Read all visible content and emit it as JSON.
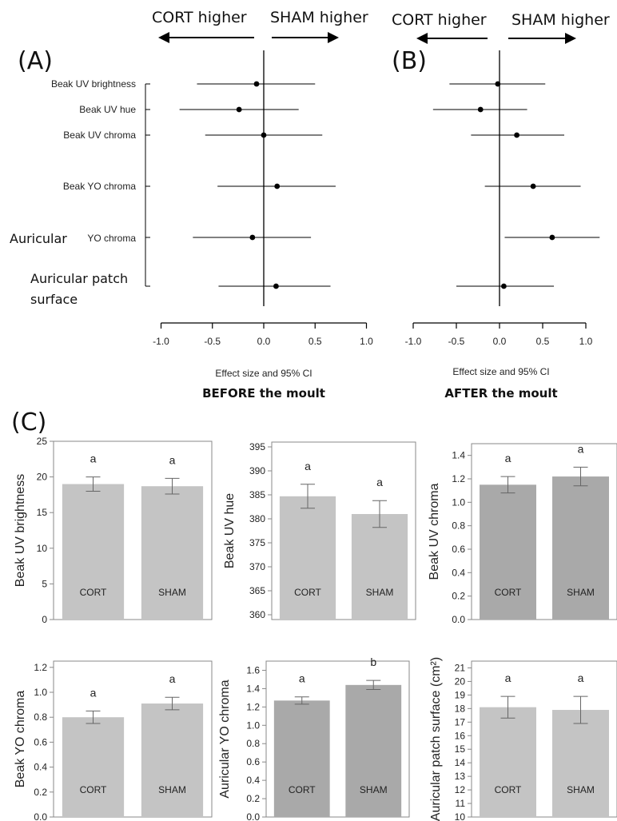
{
  "panels": {
    "forest_A": {
      "letter": "(A)",
      "left_direction": "CORT higher",
      "right_direction": "SHAM higher",
      "x_axis_label": "Effect size and 95% CI",
      "caption": "BEFORE the moult"
    },
    "forest_B": {
      "letter": "(B)",
      "left_direction": "CORT higher",
      "right_direction": "SHAM higher",
      "x_axis_label": "Effect size and 95% CI",
      "caption": "AFTER the moult"
    },
    "bars_C": {
      "letter": "(C)"
    }
  },
  "chart_data": [
    {
      "type": "scatter",
      "panel": "A",
      "categories": [
        "Beak UV brightness",
        "Beak UV hue",
        "Beak UV chroma",
        "Beak YO chroma",
        "Auricular YO chroma",
        "Auricular patch surface"
      ],
      "category_label_lines": [
        [
          "Beak UV brightness"
        ],
        [
          "Beak UV hue"
        ],
        [
          "Beak UV chroma"
        ],
        [
          "Beak YO chroma"
        ],
        [
          "Auricular",
          "YO chroma"
        ],
        [
          "Auricular patch",
          "surface"
        ]
      ],
      "estimates": [
        -0.07,
        -0.24,
        0.0,
        0.13,
        -0.11,
        0.12
      ],
      "ci_low": [
        -0.65,
        -0.82,
        -0.57,
        -0.45,
        -0.69,
        -0.44
      ],
      "ci_high": [
        0.5,
        0.34,
        0.57,
        0.7,
        0.46,
        0.65
      ],
      "xlabel": "Effect size and 95% CI",
      "xlim": [
        -1.0,
        1.0
      ],
      "xticks": [
        "-1.0",
        "-0.5",
        "0.0",
        "0.5",
        "1.0"
      ],
      "reference_line": 0
    },
    {
      "type": "scatter",
      "panel": "B",
      "categories": [
        "Beak UV brightness",
        "Beak UV hue",
        "Beak UV chroma",
        "Beak YO chroma",
        "Auricular YO chroma",
        "Auricular patch surface"
      ],
      "estimates": [
        -0.02,
        -0.22,
        0.2,
        0.39,
        0.61,
        0.05
      ],
      "ci_low": [
        -0.58,
        -0.77,
        -0.33,
        -0.17,
        0.06,
        -0.5
      ],
      "ci_high": [
        0.53,
        0.32,
        0.75,
        0.94,
        1.16,
        0.63
      ],
      "xlabel": "Effect size and 95% CI",
      "xlim": [
        -1.0,
        1.0
      ],
      "xticks": [
        "-1.0",
        "-0.5",
        "0.0",
        "0.5",
        "1.0"
      ],
      "reference_line": 0
    },
    {
      "type": "bar",
      "panel": "C1",
      "categories": [
        "CORT",
        "SHAM"
      ],
      "values": [
        19.0,
        18.7
      ],
      "errors": [
        1.0,
        1.1
      ],
      "letters": [
        "a",
        "a"
      ],
      "ylabel": "Beak UV brightness",
      "ylim": [
        0,
        25
      ],
      "yticks": [
        "0",
        "5",
        "10",
        "15",
        "20",
        "25"
      ],
      "bar_color": "#c4c4c4"
    },
    {
      "type": "bar",
      "panel": "C2",
      "categories": [
        "CORT",
        "SHAM"
      ],
      "values": [
        384.7,
        381.0
      ],
      "errors": [
        2.5,
        2.8
      ],
      "letters": [
        "a",
        "a"
      ],
      "ylabel": "Beak UV hue",
      "ylim": [
        359,
        396
      ],
      "yticks": [
        "360",
        "365",
        "370",
        "375",
        "380",
        "385",
        "390",
        "395"
      ],
      "bar_color": "#c4c4c4"
    },
    {
      "type": "bar",
      "panel": "C3",
      "categories": [
        "CORT",
        "SHAM"
      ],
      "values": [
        1.15,
        1.22
      ],
      "errors": [
        0.07,
        0.08
      ],
      "letters": [
        "a",
        "a"
      ],
      "ylabel": "Beak UV chroma",
      "ylim": [
        0,
        1.5
      ],
      "yticks": [
        "0.0",
        "0.2",
        "0.4",
        "0.6",
        "0.8",
        "1.0",
        "1.2",
        "1.4"
      ],
      "bar_color": "#a9a9a9"
    },
    {
      "type": "bar",
      "panel": "C4",
      "categories": [
        "CORT",
        "SHAM"
      ],
      "values": [
        0.8,
        0.91
      ],
      "errors": [
        0.05,
        0.05
      ],
      "letters": [
        "a",
        "a"
      ],
      "ylabel": "Beak YO chroma",
      "ylim": [
        0,
        1.25
      ],
      "yticks": [
        "0.0",
        "0.2",
        "0.4",
        "0.6",
        "0.8",
        "1.0",
        "1.2"
      ],
      "bar_color": "#c4c4c4"
    },
    {
      "type": "bar",
      "panel": "C5",
      "categories": [
        "CORT",
        "SHAM"
      ],
      "values": [
        1.27,
        1.44
      ],
      "errors": [
        0.04,
        0.05
      ],
      "letters": [
        "a",
        "b"
      ],
      "ylabel": "Auricular YO chroma",
      "ylim": [
        0,
        1.7
      ],
      "yticks": [
        "0.0",
        "0.2",
        "0.4",
        "0.6",
        "0.8",
        "1.0",
        "1.2",
        "1.4",
        "1.6"
      ],
      "bar_color": "#a9a9a9"
    },
    {
      "type": "bar",
      "panel": "C6",
      "categories": [
        "CORT",
        "SHAM"
      ],
      "values": [
        18.1,
        17.9
      ],
      "errors": [
        0.8,
        1.0
      ],
      "letters": [
        "a",
        "a"
      ],
      "ylabel": "Auricular patch surface (cm²)",
      "ylim": [
        10,
        21.5
      ],
      "yticks": [
        "10",
        "11",
        "12",
        "13",
        "14",
        "15",
        "16",
        "17",
        "18",
        "19",
        "20",
        "21"
      ],
      "bar_color": "#c4c4c4"
    }
  ]
}
